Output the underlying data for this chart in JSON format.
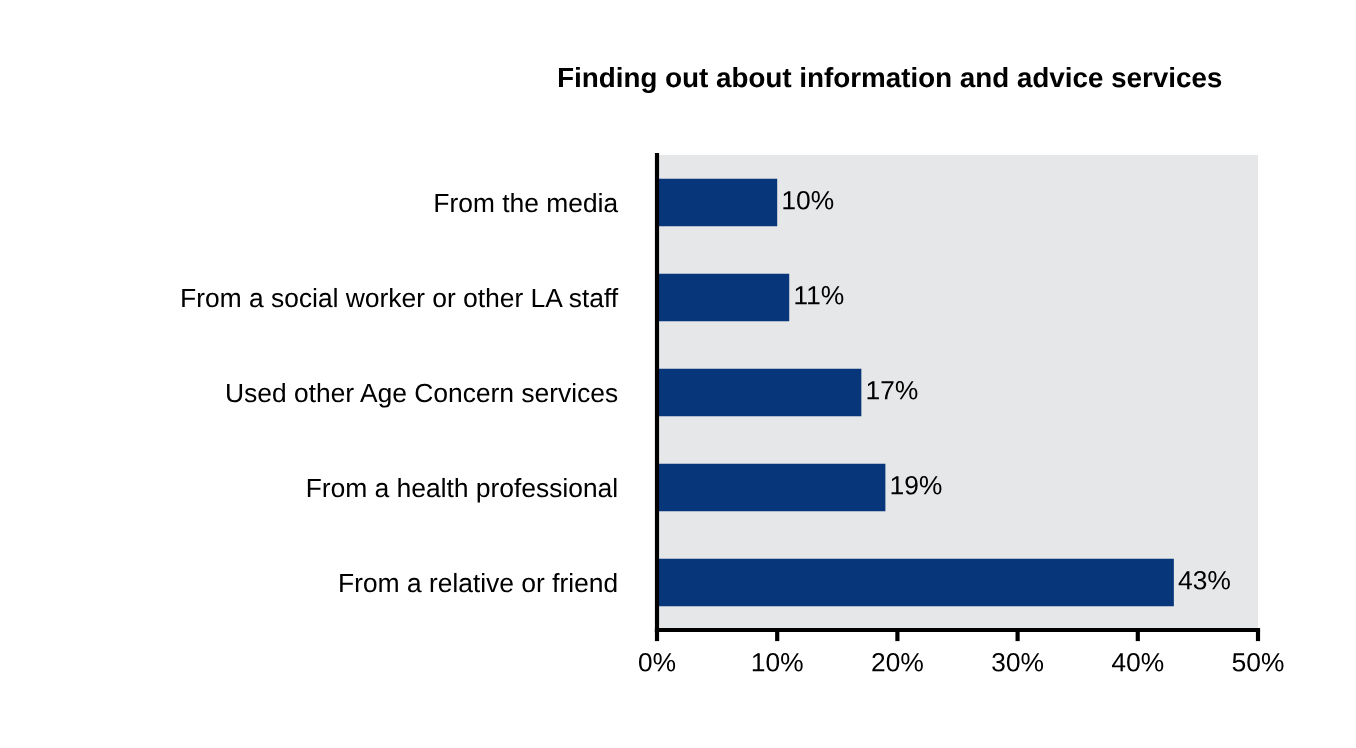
{
  "chart_data": {
    "type": "bar",
    "orientation": "horizontal",
    "title": "Finding out about information and advice services",
    "categories": [
      "From the media",
      "From a social worker or other LA staff",
      "Used other Age Concern services",
      "From a health professional",
      "From a relative or friend"
    ],
    "values": [
      10,
      11,
      17,
      19,
      43
    ],
    "value_labels": [
      "10%",
      "11%",
      "17%",
      "19%",
      "43%"
    ],
    "color": "#08367a",
    "xlim": [
      0,
      50
    ],
    "xticks": [
      {
        "value": 0,
        "label": "0%"
      },
      {
        "value": 10,
        "label": "10%"
      },
      {
        "value": 20,
        "label": "20%"
      },
      {
        "value": 30,
        "label": "30%"
      },
      {
        "value": 40,
        "label": "40%"
      },
      {
        "value": 50,
        "label": "50%"
      }
    ],
    "grid": false,
    "legend": false
  }
}
